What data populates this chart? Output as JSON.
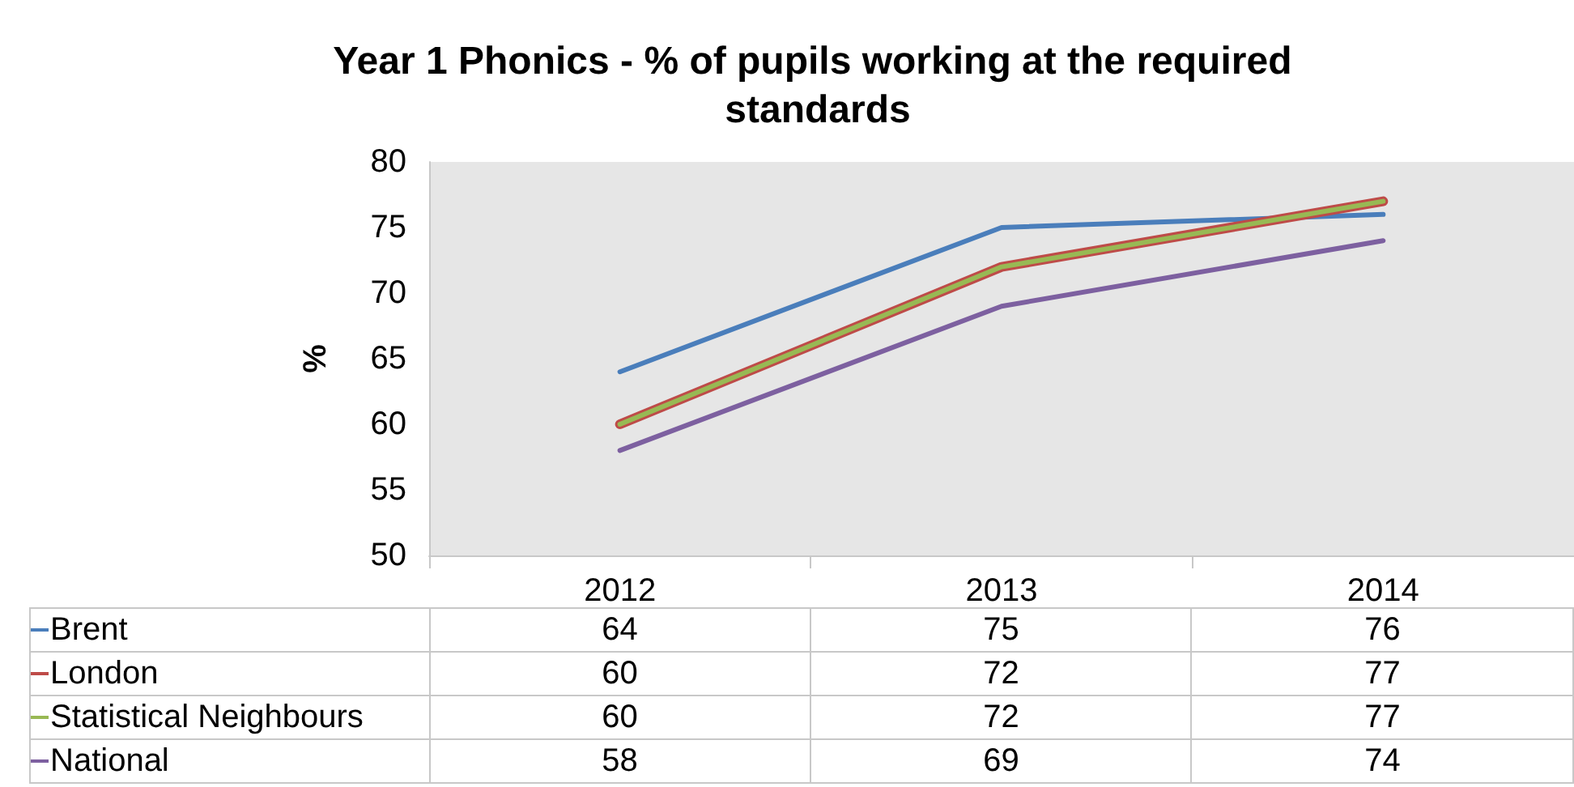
{
  "chart_data": {
    "type": "line",
    "title": "Year 1 Phonics - % of pupils working at the required standards",
    "ylabel": "%",
    "categories": [
      "2012",
      "2013",
      "2014"
    ],
    "series": [
      {
        "name": "Brent",
        "color": "#4a7ebb",
        "values": [
          64,
          75,
          76
        ]
      },
      {
        "name": "London",
        "color": "#be4b48",
        "values": [
          60,
          72,
          77
        ]
      },
      {
        "name": "Statistical Neighbours",
        "color": "#98b954",
        "values": [
          60,
          72,
          77
        ]
      },
      {
        "name": "National",
        "color": "#7d60a0",
        "values": [
          58,
          69,
          74
        ]
      }
    ],
    "ylim": [
      50,
      80
    ],
    "yticks": [
      50,
      55,
      60,
      65,
      70,
      75,
      80
    ],
    "grid": false,
    "legend": "bottom",
    "data_labels": true,
    "marker": "none",
    "line_style": "solid"
  }
}
